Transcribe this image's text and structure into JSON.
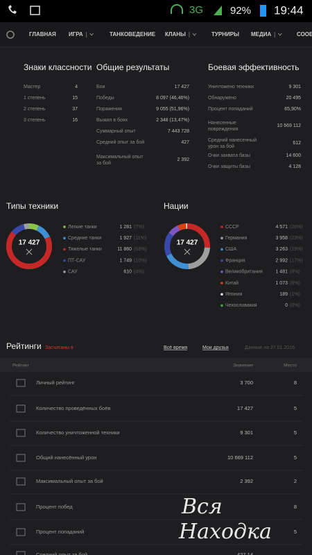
{
  "status_bar": {
    "network": "3G",
    "battery": "92%",
    "time": "19:44"
  },
  "nav": [
    "ГЛАВНАЯ",
    "ИГРА",
    "ТАНКОВЕДЕНИЕ",
    "КЛАНЫ",
    "ТУРНИРЫ",
    "МЕДИА",
    "СООБ"
  ],
  "classes": {
    "title": "Знаки классности",
    "rows": [
      [
        "Мастер",
        "4"
      ],
      [
        "1 степень",
        "15"
      ],
      [
        "2 степень",
        "37"
      ],
      [
        "3 степень",
        "16"
      ]
    ]
  },
  "overall": {
    "title": "Общие результаты",
    "rows": [
      [
        "Бои",
        "17 427"
      ],
      [
        "Победы",
        "8 097 (46,46%)"
      ],
      [
        "Поражения",
        "9 055 (51,96%)"
      ],
      [
        "Выжил в боях",
        "2 348 (13,47%)"
      ],
      [
        "Суммарный опыт",
        "7 443 728"
      ],
      [
        "Средний опыт за бой",
        "427"
      ],
      [
        [
          "Максимальный опыт",
          "за бой"
        ],
        "2 392"
      ]
    ]
  },
  "efficiency": {
    "title": "Боевая эффективность",
    "rows": [
      [
        "Уничтожено техники",
        "9 301"
      ],
      [
        "Обнаружено",
        "20 495"
      ],
      [
        "Процент попаданий",
        "65,90%"
      ],
      [
        [
          "Нанесенные",
          "повреждения"
        ],
        "10 669 112"
      ],
      [
        [
          "Средний нанесенный",
          "урон за бой"
        ],
        "612"
      ],
      [
        "Очки захвата базы",
        "14 600"
      ],
      [
        "Очки защиты базы",
        "4 128"
      ]
    ]
  },
  "types": {
    "title": "Типы техники",
    "total": "17 427",
    "items": [
      {
        "name": "Легкие танки",
        "count": "1 281",
        "share": 7,
        "share_label": "(7%)",
        "color": "#8bc34a"
      },
      {
        "name": "Средние танки",
        "count": "1 927",
        "share": 11,
        "share_label": "(11%)",
        "color": "#3f8fd2"
      },
      {
        "name": "Тяжелые танки",
        "count": "11 860",
        "share": 68,
        "share_label": "(68%)",
        "color": "#c62828"
      },
      {
        "name": "ПТ-САУ",
        "count": "1 749",
        "share": 10,
        "share_label": "(10%)",
        "color": "#3949ab"
      },
      {
        "name": "САУ",
        "count": "610",
        "share": 4,
        "share_label": "(4%)",
        "color": "#9e9e9e"
      }
    ]
  },
  "nations": {
    "title": "Нации",
    "total": "17 427",
    "items": [
      {
        "name": "СССР",
        "count": "4 571",
        "share": 26,
        "share_label": "(26%)",
        "color": "#c62828"
      },
      {
        "name": "Германия",
        "count": "3 958",
        "share": 23,
        "share_label": "(23%)",
        "color": "#9e9e9e"
      },
      {
        "name": "США",
        "count": "3 263",
        "share": 19,
        "share_label": "(19%)",
        "color": "#3f8fd2"
      },
      {
        "name": "Франция",
        "count": "2 992",
        "share": 17,
        "share_label": "(17%)",
        "color": "#3949ab"
      },
      {
        "name": "Великобритания",
        "count": "1 481",
        "share": 8,
        "share_label": "(8%)",
        "color": "#7e57c2"
      },
      {
        "name": "Китай",
        "count": "1 073",
        "share": 6,
        "share_label": "(6%)",
        "color": "#d84315"
      },
      {
        "name": "Япония",
        "count": "189",
        "share": 1,
        "share_label": "(1%)",
        "color": "#e0e0e0"
      },
      {
        "name": "Чехословакия",
        "count": "0",
        "share": 0,
        "share_label": "(0%)",
        "color": "#43a047"
      }
    ]
  },
  "ratings": {
    "title": "Рейтинги",
    "counted": "Засчитаны в",
    "period": "Всё время",
    "scope": "Мои друзья",
    "date": "Данные на 27.01.2016",
    "columns": [
      "Рейтинг",
      "Значение",
      "Место"
    ],
    "rows": [
      {
        "name": "Личный рейтинг",
        "value": "3 700",
        "place": "8"
      },
      {
        "name": "Количество проведённых боёв",
        "value": "17 427",
        "place": "5"
      },
      {
        "name": "Количество уничтоженной техники",
        "value": "9 301",
        "place": "5"
      },
      {
        "name": "Общий нанесённый урон",
        "value": "10 669 112",
        "place": "5"
      },
      {
        "name": "Максимальный опыт за бой",
        "value": "2 392",
        "place": "2"
      },
      {
        "name": "Процент побед",
        "place": "8"
      },
      {
        "name": "Процент попаданий",
        "place": "5"
      },
      {
        "name": "Средний опыт за бой",
        "value": "427,14"
      }
    ]
  },
  "watermark": [
    "Вся",
    "Находка"
  ]
}
